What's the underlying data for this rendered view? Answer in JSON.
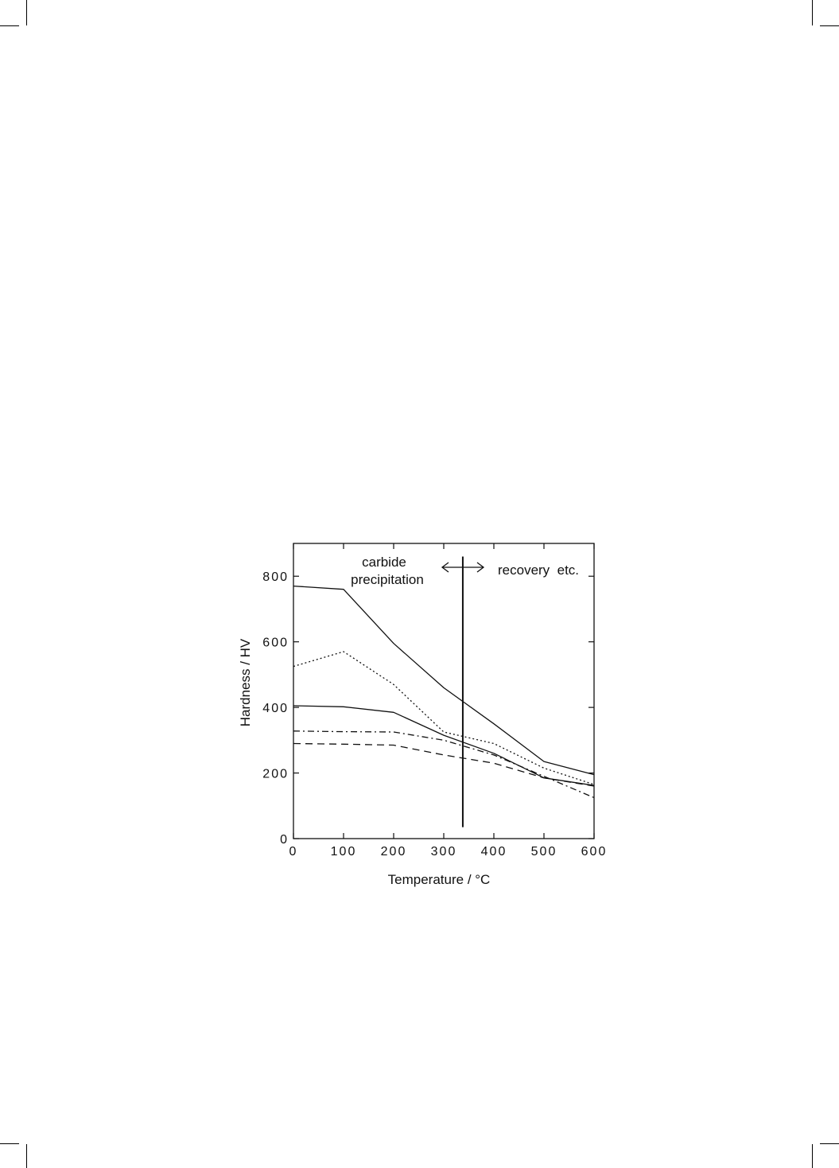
{
  "chart_data": {
    "type": "line",
    "title": "",
    "xlabel": "Temperature / °C",
    "ylabel": "Hardness / HV",
    "xlim": [
      0,
      600
    ],
    "ylim": [
      0,
      900
    ],
    "x_ticks": [
      0,
      100,
      200,
      300,
      400,
      500,
      600
    ],
    "y_ticks": [
      0,
      200,
      400,
      600,
      800
    ],
    "grid": false,
    "series": [
      {
        "style": "solid",
        "points": [
          [
            0,
            770
          ],
          [
            100,
            760
          ],
          [
            200,
            595
          ],
          [
            300,
            460
          ],
          [
            400,
            350
          ],
          [
            500,
            235
          ],
          [
            600,
            195
          ]
        ]
      },
      {
        "style": "dotted",
        "points": [
          [
            0,
            525
          ],
          [
            100,
            570
          ],
          [
            200,
            470
          ],
          [
            300,
            325
          ],
          [
            400,
            290
          ],
          [
            500,
            215
          ],
          [
            600,
            165
          ]
        ]
      },
      {
        "style": "solid",
        "points": [
          [
            0,
            405
          ],
          [
            100,
            402
          ],
          [
            200,
            385
          ],
          [
            300,
            315
          ],
          [
            400,
            260
          ],
          [
            500,
            185
          ],
          [
            600,
            162
          ]
        ]
      },
      {
        "style": "dash-dot",
        "points": [
          [
            0,
            328
          ],
          [
            100,
            326
          ],
          [
            200,
            325
          ],
          [
            300,
            300
          ],
          [
            400,
            255
          ],
          [
            500,
            190
          ],
          [
            600,
            125
          ]
        ]
      },
      {
        "style": "dashed",
        "points": [
          [
            0,
            290
          ],
          [
            100,
            288
          ],
          [
            200,
            285
          ],
          [
            300,
            255
          ],
          [
            400,
            230
          ],
          [
            500,
            185
          ],
          [
            600,
            160
          ]
        ]
      }
    ],
    "divider": {
      "x": 338,
      "y_from": 35,
      "y_to": 860
    },
    "annotations": {
      "left_line1": "carbide",
      "left_line2": "precipitation",
      "right": "recovery  etc."
    }
  }
}
